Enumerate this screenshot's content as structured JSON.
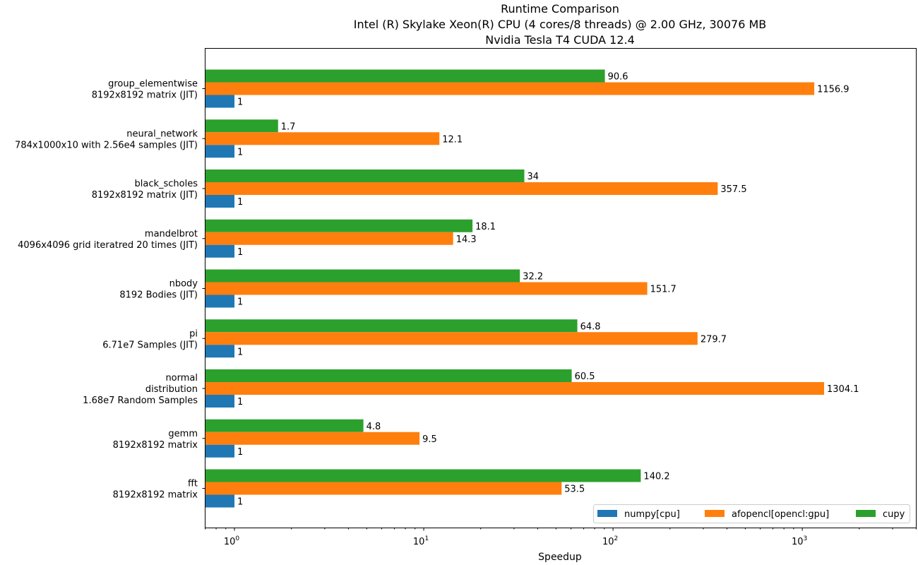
{
  "chart_data": {
    "type": "bar",
    "orientation": "horizontal",
    "title": [
      "Runtime Comparison",
      "Intel (R) Skylake Xeon(R) CPU (4 cores/8 threads) @ 2.00 GHz, 30076 MB",
      "Nvidia Tesla T4 CUDA 12.4"
    ],
    "xlabel": "Speedup",
    "ylabel": "",
    "xscale": "log",
    "xlim": [
      0.7,
      4000
    ],
    "xticks": [
      {
        "value": 1,
        "base": "10",
        "exp": "0"
      },
      {
        "value": 10,
        "base": "10",
        "exp": "1"
      },
      {
        "value": 100,
        "base": "10",
        "exp": "2"
      },
      {
        "value": 1000,
        "base": "10",
        "exp": "3"
      }
    ],
    "categories": [
      [
        "group_elementwise",
        "8192x8192 matrix (JIT)"
      ],
      [
        "neural_network",
        "784x1000x10 with 2.56e4 samples (JIT)"
      ],
      [
        "black_scholes",
        "8192x8192 matrix (JIT)"
      ],
      [
        "mandelbrot",
        "4096x4096 grid iteratred 20 times (JIT)"
      ],
      [
        "nbody",
        "8192 Bodies (JIT)"
      ],
      [
        "pi",
        "6.71e7 Samples (JIT)"
      ],
      [
        "normal",
        "distribution",
        "1.68e7 Random Samples"
      ],
      [
        "gemm",
        "8192x8192 matrix"
      ],
      [
        "fft",
        "8192x8192 matrix"
      ]
    ],
    "series": [
      {
        "name": "numpy[cpu]",
        "color": "#1f77b4",
        "values": [
          1,
          1,
          1,
          1,
          1,
          1,
          1,
          1,
          1
        ],
        "labels": [
          "1",
          "1",
          "1",
          "1",
          "1",
          "1",
          "1",
          "1",
          "1"
        ]
      },
      {
        "name": "afopencl[opencl:gpu]",
        "color": "#ff7f0e",
        "values": [
          1156.9,
          12.1,
          357.5,
          14.3,
          151.7,
          279.7,
          1304.1,
          9.5,
          53.5
        ],
        "labels": [
          "1156.9",
          "12.1",
          "357.5",
          "14.3",
          "151.7",
          "279.7",
          "1304.1",
          "9.5",
          "53.5"
        ]
      },
      {
        "name": "cupy",
        "color": "#2ca02c",
        "values": [
          90.6,
          1.7,
          34,
          18.1,
          32.2,
          64.8,
          60.5,
          4.8,
          140.2
        ],
        "labels": [
          "90.6",
          "1.7",
          "34",
          "18.1",
          "32.2",
          "64.8",
          "60.5",
          "4.8",
          "140.2"
        ]
      }
    ],
    "grid": false,
    "legend_position": "lower-right"
  }
}
